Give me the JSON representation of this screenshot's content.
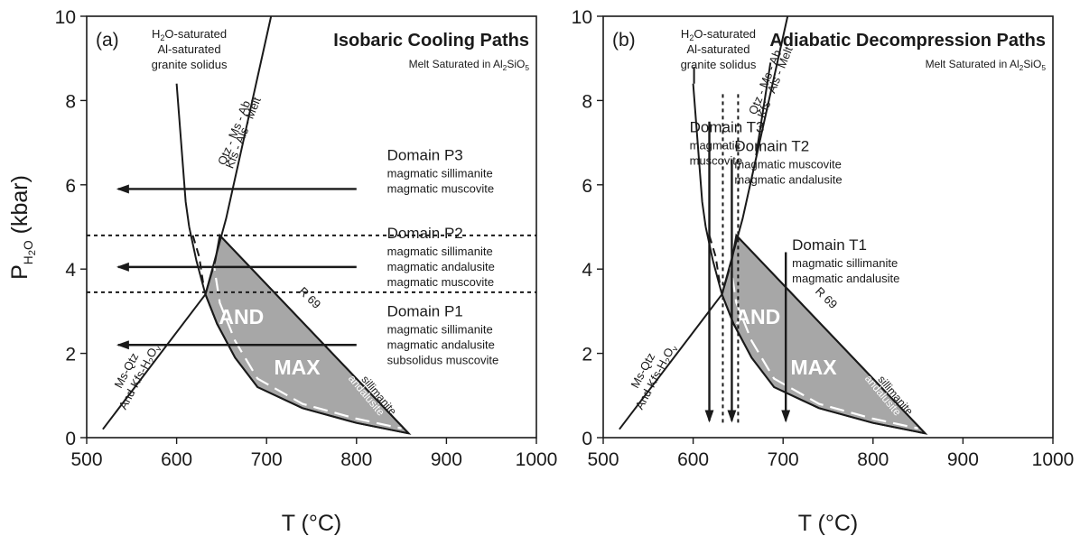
{
  "chart_data": [
    {
      "type": "phase-diagram",
      "panel_label": "(a)",
      "title": "Isobaric Cooling Paths",
      "subtitle": "Melt Saturated in Al2SiO5",
      "xlabel": "T (°C)",
      "ylabel": "P H2O (kbar)",
      "xlim": [
        500,
        1000
      ],
      "ylim": [
        0,
        10
      ],
      "xticks": [
        500,
        600,
        700,
        800,
        900,
        1000
      ],
      "yticks": [
        0,
        2,
        4,
        6,
        8,
        10
      ],
      "curves": [
        {
          "name": "H2O-saturated Al-saturated granite solidus",
          "label_lines": [
            "H2O-saturated",
            "Al-saturated",
            "granite solidus"
          ],
          "points": [
            [
              600,
              8.4
            ],
            [
              605,
              7.0
            ],
            [
              610,
              5.6
            ],
            [
              618,
              4.6
            ],
            [
              625,
              4.0
            ],
            [
              632,
              3.4
            ],
            [
              645,
              2.7
            ],
            [
              665,
              1.9
            ],
            [
              690,
              1.2
            ],
            [
              740,
              0.7
            ],
            [
              800,
              0.35
            ],
            [
              858,
              0.1
            ]
          ]
        },
        {
          "name": "Qtz-Ms-Ab / Kfs-Als-Melt",
          "labels": [
            "Qtz - Ms - Ab",
            "Kfs - Als - Melt"
          ],
          "points": [
            [
              632,
              3.4
            ],
            [
              655,
              5.2
            ],
            [
              705,
              10.0
            ]
          ]
        },
        {
          "name": "Ms-Qtz / And-Kfs-H2Ov",
          "labels": [
            "Ms-Qtz",
            "And-Kfs-H2Ov"
          ],
          "points": [
            [
              518,
              0.2
            ],
            [
              632,
              3.4
            ]
          ]
        },
        {
          "name": "R 69",
          "points": [
            [
              648,
              4.8
            ],
            [
              858,
              0.1
            ]
          ]
        }
      ],
      "regions": [
        {
          "name": "Al2SiO5 melt field",
          "labels": [
            "AND",
            "MAX"
          ],
          "boundary_labels": [
            "sillimanite",
            "andalusite"
          ]
        }
      ],
      "domains": [
        {
          "name": "Domain P3",
          "lines": [
            "magmatic sillimanite",
            "magmatic muscovite"
          ],
          "path": {
            "from": [
              800,
              5.9
            ],
            "to": [
              535,
              5.9
            ]
          }
        },
        {
          "name": "Domain P2",
          "lines": [
            "magmatic sillimanite",
            "magmatic andalusite",
            "magmatic muscovite"
          ],
          "path": {
            "from": [
              800,
              4.05
            ],
            "to": [
              535,
              4.05
            ]
          }
        },
        {
          "name": "Domain P1",
          "lines": [
            "magmatic sillimanite",
            "magmatic andalusite",
            "subsolidus muscovite"
          ],
          "path": {
            "from": [
              800,
              2.2
            ],
            "to": [
              535,
              2.2
            ]
          }
        }
      ],
      "boundaries": [
        4.8,
        3.45
      ],
      "boundary_label": "R 69"
    },
    {
      "type": "phase-diagram",
      "panel_label": "(b)",
      "title": "Adiabatic Decompression Paths",
      "subtitle": "Melt Saturated in Al2SiO5",
      "xlabel": "T (°C)",
      "ylabel": "",
      "xlim": [
        500,
        1000
      ],
      "ylim": [
        0,
        10
      ],
      "xticks": [
        500,
        600,
        700,
        800,
        900,
        1000
      ],
      "yticks": [
        0,
        2,
        4,
        6,
        8,
        10
      ],
      "solidus_label_lines": [
        "H2O-saturated",
        "Al-saturated",
        "granite solidus"
      ],
      "curve_labels": [
        "Qtz - Ms - Ab",
        "Kfs - Als - Melt",
        "Ms-Qtz",
        "And-Kfs-H2Ov"
      ],
      "region_labels": [
        "AND",
        "MAX"
      ],
      "boundary_labels": [
        "sillimanite",
        "andalusite"
      ],
      "boundary_label": "R 69",
      "domains": [
        {
          "name": "Domain T3",
          "lines": [
            "magmatic",
            "muscovite"
          ],
          "path": {
            "from": [
              618,
              7.5
            ],
            "to": [
              618,
              0.4
            ]
          }
        },
        {
          "name": "Domain T2",
          "lines": [
            "magmatic muscovite",
            "magmatic andalusite"
          ],
          "path": {
            "from": [
              643,
              6.6
            ],
            "to": [
              643,
              0.4
            ]
          }
        },
        {
          "name": "Domain T1",
          "lines": [
            "magmatic sillimanite",
            "magmatic andalusite"
          ],
          "path": {
            "from": [
              703,
              4.4
            ],
            "to": [
              703,
              0.4
            ]
          }
        }
      ],
      "vertical_boundaries": [
        633,
        650
      ]
    }
  ]
}
